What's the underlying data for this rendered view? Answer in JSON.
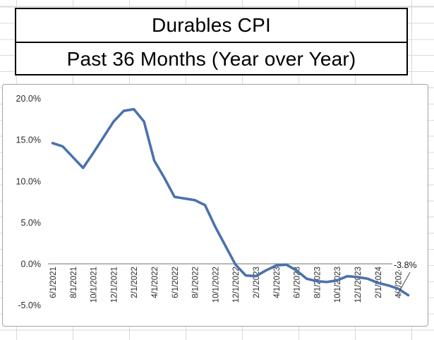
{
  "title_box": {
    "line1": "Durables CPI",
    "line2": "Past 36 Months (Year over Year)"
  },
  "chart_data": {
    "type": "line",
    "title": "Durables CPI",
    "subtitle": "Past 36 Months (Year over Year)",
    "categories": [
      "6/1/2021",
      "7/1/2021",
      "8/1/2021",
      "9/1/2021",
      "10/1/2021",
      "11/1/2021",
      "12/1/2021",
      "1/1/2022",
      "2/1/2022",
      "3/1/2022",
      "4/1/2022",
      "5/1/2022",
      "6/1/2022",
      "7/1/2022",
      "8/1/2022",
      "9/1/2022",
      "10/1/2022",
      "11/1/2022",
      "12/1/2022",
      "1/1/2023",
      "2/1/2023",
      "3/1/2023",
      "4/1/2023",
      "5/1/2023",
      "6/1/2023",
      "7/1/2023",
      "8/1/2023",
      "9/1/2023",
      "10/1/2023",
      "11/1/2023",
      "12/1/2023",
      "1/1/2024",
      "2/1/2024",
      "3/1/2024",
      "4/1/2024",
      "5/1/2024"
    ],
    "values": [
      14.6,
      14.2,
      12.9,
      11.6,
      13.4,
      15.3,
      17.2,
      18.5,
      18.7,
      17.2,
      12.5,
      10.4,
      8.1,
      7.9,
      7.7,
      7.1,
      4.5,
      2.2,
      -0.1,
      -1.4,
      -1.5,
      -0.8,
      -0.2,
      -0.1,
      -0.8,
      -1.8,
      -2.1,
      -2.2,
      -2.0,
      -1.5,
      -1.6,
      -1.8,
      -2.3,
      -2.6,
      -3.0,
      -3.8
    ],
    "y_tick_labels": [
      "20.0%",
      "15.0%",
      "10.0%",
      "5.0%",
      "0.0%",
      "-5.0%"
    ],
    "x_label_step": 2,
    "x_labels_shown": [
      "6/1/2021",
      "8/1/2021",
      "10/1/2021",
      "12/1/2021",
      "2/1/2022",
      "4/1/2022",
      "6/1/2022",
      "8/1/2022",
      "10/1/2022",
      "12/1/2022",
      "2/1/2023",
      "4/1/2023",
      "6/1/2023",
      "8/1/2023",
      "10/1/2023",
      "12/1/2023",
      "2/1/2024",
      "4/1/2024"
    ],
    "ylim": [
      -5,
      20
    ],
    "last_point_label": "-3.8%",
    "series_color": "#4b71ad",
    "axis_color": "#8c8c8c",
    "label_color": "#2b2b2b",
    "grid": false,
    "legend": false
  }
}
